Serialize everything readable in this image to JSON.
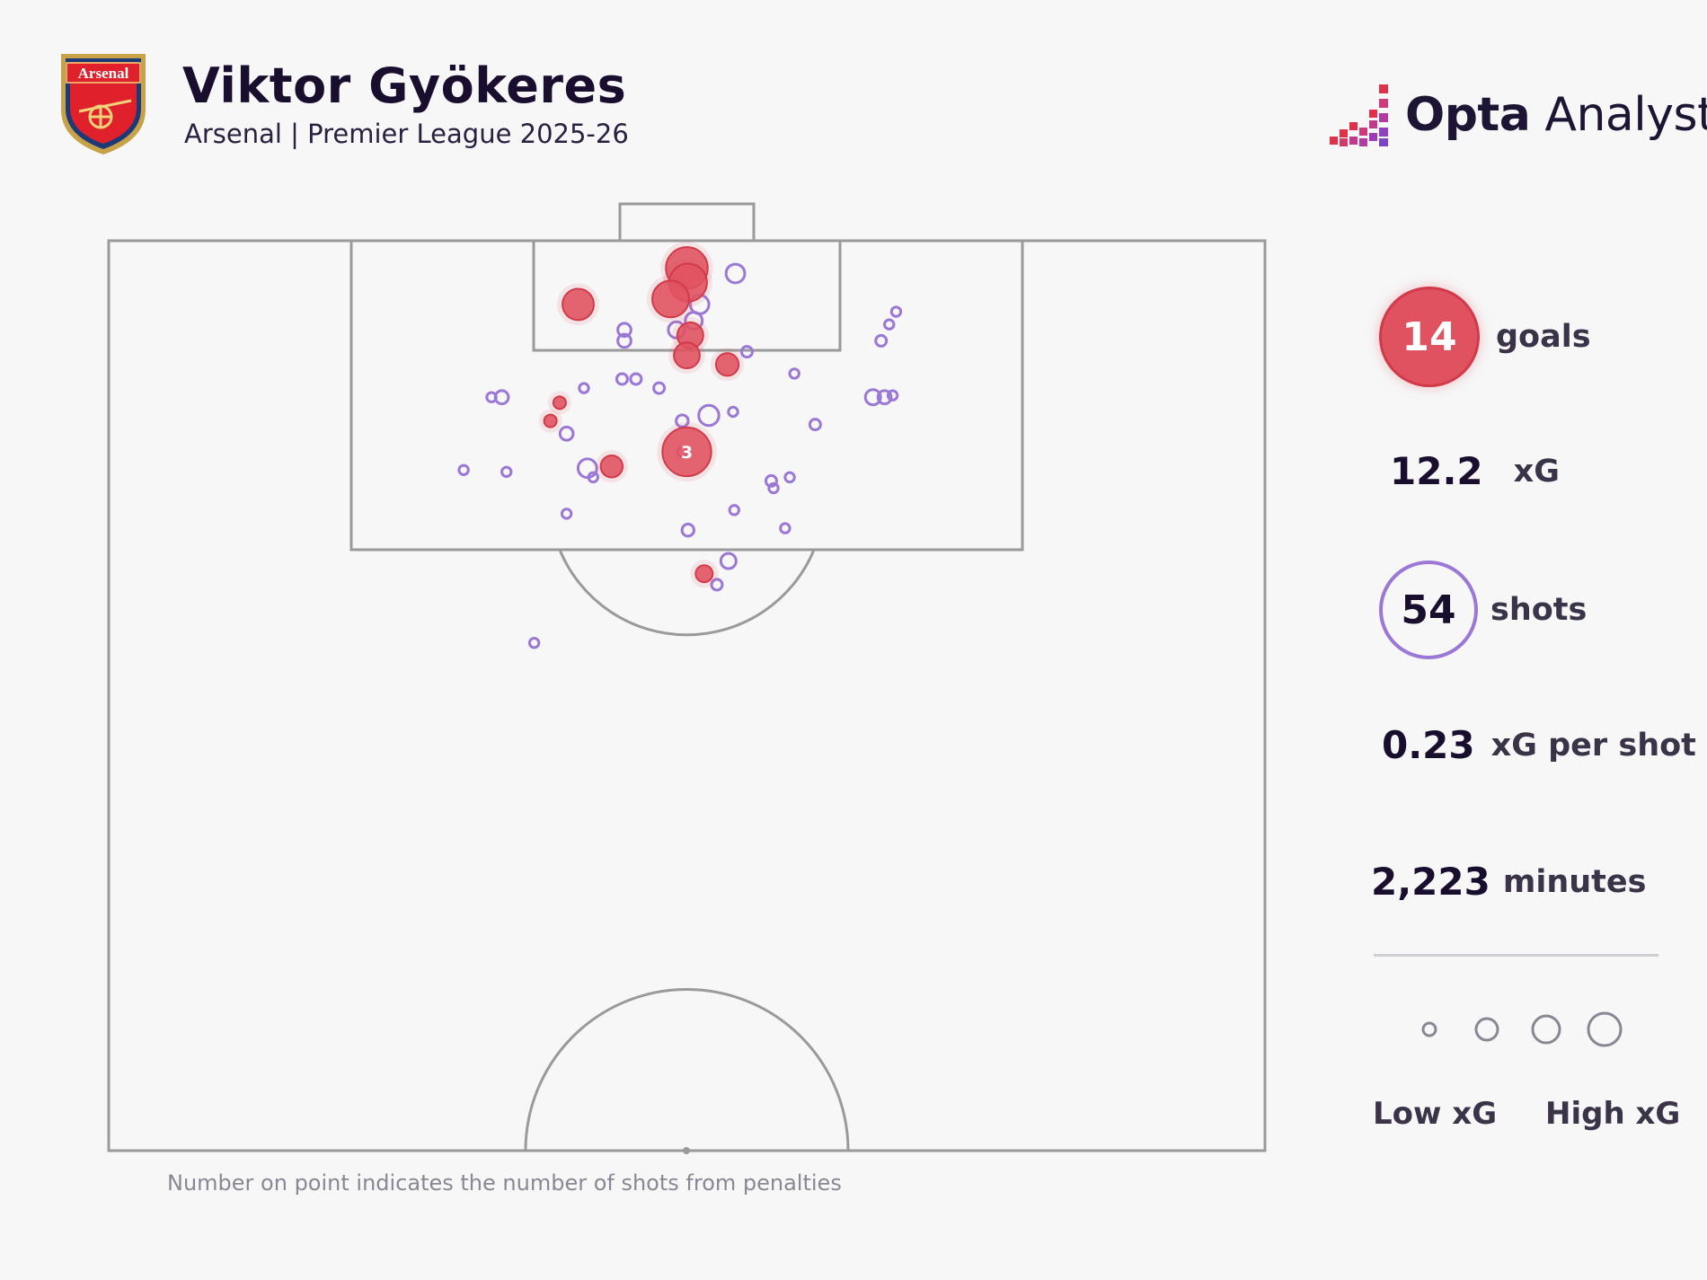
{
  "header": {
    "title": "Viktor Gyökeres",
    "subtitle": "Arsenal | Premier League 2025-26",
    "crest_text": "Arsenal",
    "brand_bold": "Opta",
    "brand_light": " Analyst"
  },
  "stats": {
    "goals_value": "14",
    "goals_label": "goals",
    "xg_value": "12.2",
    "xg_label": "xG",
    "shots_value": "54",
    "shots_label": "shots",
    "xg_per_shot_value": "0.23",
    "xg_per_shot_label": "xG per shot",
    "minutes_value": "2,223",
    "minutes_label": "minutes"
  },
  "legend": {
    "low_label": "Low xG",
    "high_label": "High xG",
    "sizes": [
      0.05,
      0.15,
      0.25,
      0.35
    ]
  },
  "footnote": "Number on point indicates the number of shots from penalties",
  "colors": {
    "goal": "#e05260",
    "shot": "#9b78d6",
    "pitch_line": "#9a9a9a",
    "background": "#f7f7f7"
  },
  "chart_data": {
    "type": "scatter",
    "x_axis": "pitch width (0-100)",
    "y_axis": "distance from goal line (0-50, half pitch)",
    "xlim": [
      0,
      100
    ],
    "ylim": [
      0,
      50
    ],
    "goals": [
      {
        "x": 50,
        "y": 1.5,
        "xg": 0.55
      },
      {
        "x": 50.1,
        "y": 2.3,
        "xg": 0.45
      },
      {
        "x": 48.6,
        "y": 3.2,
        "xg": 0.42
      },
      {
        "x": 40.6,
        "y": 3.5,
        "xg": 0.3
      },
      {
        "x": 50.3,
        "y": 5.2,
        "xg": 0.2
      },
      {
        "x": 50,
        "y": 6.3,
        "xg": 0.2
      },
      {
        "x": 53.5,
        "y": 6.8,
        "xg": 0.15
      },
      {
        "x": 39,
        "y": 8.9,
        "xg": 0.04
      },
      {
        "x": 38.2,
        "y": 9.9,
        "xg": 0.04
      },
      {
        "x": 50,
        "y": 11.6,
        "xg": 0.76,
        "penalties": "3"
      },
      {
        "x": 43.5,
        "y": 12.4,
        "xg": 0.14
      },
      {
        "x": 51.5,
        "y": 18.3,
        "xg": 0.08
      }
    ],
    "shots": [
      {
        "x": 54.2,
        "y": 1.8,
        "xg": 0.12
      },
      {
        "x": 51.1,
        "y": 3.5,
        "xg": 0.12
      },
      {
        "x": 50.6,
        "y": 4.4,
        "xg": 0.1
      },
      {
        "x": 49.1,
        "y": 4.9,
        "xg": 0.09
      },
      {
        "x": 44.6,
        "y": 4.9,
        "xg": 0.06
      },
      {
        "x": 44.6,
        "y": 5.5,
        "xg": 0.06
      },
      {
        "x": 55.2,
        "y": 6.1,
        "xg": 0.04
      },
      {
        "x": 68.1,
        "y": 3.9,
        "xg": 0.03
      },
      {
        "x": 67.5,
        "y": 4.6,
        "xg": 0.03
      },
      {
        "x": 66.8,
        "y": 5.5,
        "xg": 0.04
      },
      {
        "x": 59.3,
        "y": 7.3,
        "xg": 0.03
      },
      {
        "x": 44.4,
        "y": 7.6,
        "xg": 0.04
      },
      {
        "x": 45.6,
        "y": 7.6,
        "xg": 0.04
      },
      {
        "x": 47.6,
        "y": 8.1,
        "xg": 0.04
      },
      {
        "x": 41.1,
        "y": 8.1,
        "xg": 0.03
      },
      {
        "x": 33.1,
        "y": 8.6,
        "xg": 0.03
      },
      {
        "x": 34,
        "y": 8.6,
        "xg": 0.06
      },
      {
        "x": 66.1,
        "y": 8.6,
        "xg": 0.08
      },
      {
        "x": 67.1,
        "y": 8.6,
        "xg": 0.06
      },
      {
        "x": 67.8,
        "y": 8.5,
        "xg": 0.03
      },
      {
        "x": 54,
        "y": 9.4,
        "xg": 0.03
      },
      {
        "x": 51.9,
        "y": 9.6,
        "xg": 0.14
      },
      {
        "x": 49.6,
        "y": 9.9,
        "xg": 0.05
      },
      {
        "x": 61.1,
        "y": 10.1,
        "xg": 0.04
      },
      {
        "x": 39.6,
        "y": 10.6,
        "xg": 0.06
      },
      {
        "x": 49.6,
        "y": 11.6,
        "xg": 0.03
      },
      {
        "x": 41.4,
        "y": 12.5,
        "xg": 0.12
      },
      {
        "x": 41.9,
        "y": 13.0,
        "xg": 0.03
      },
      {
        "x": 30.7,
        "y": 12.6,
        "xg": 0.03
      },
      {
        "x": 34.4,
        "y": 12.7,
        "xg": 0.03
      },
      {
        "x": 57.3,
        "y": 13.2,
        "xg": 0.04
      },
      {
        "x": 57.5,
        "y": 13.6,
        "xg": 0.03
      },
      {
        "x": 58.9,
        "y": 13.0,
        "xg": 0.03
      },
      {
        "x": 39.6,
        "y": 15.0,
        "xg": 0.03
      },
      {
        "x": 54.1,
        "y": 14.8,
        "xg": 0.03
      },
      {
        "x": 50.1,
        "y": 15.9,
        "xg": 0.05
      },
      {
        "x": 58.5,
        "y": 15.8,
        "xg": 0.03
      },
      {
        "x": 53.6,
        "y": 17.6,
        "xg": 0.08
      },
      {
        "x": 52.6,
        "y": 18.9,
        "xg": 0.04
      },
      {
        "x": 36.8,
        "y": 22.1,
        "xg": 0.03
      }
    ]
  }
}
